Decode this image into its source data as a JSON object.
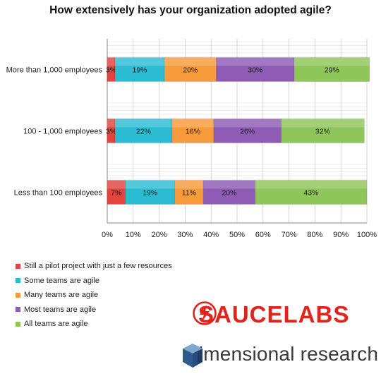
{
  "chart_data": {
    "type": "bar",
    "orientation": "horizontal",
    "stacked": true,
    "title": "How extensively has your organization adopted agile?",
    "categories": [
      "More than 1,000 employees",
      "100 - 1,000 employees",
      "Less than 100 employees"
    ],
    "series": [
      {
        "name": "Still a pilot project with just a few resources",
        "color": "#e0453e",
        "values": [
          3,
          3,
          7
        ],
        "labels": [
          "3%",
          "3%",
          "7%"
        ]
      },
      {
        "name": "Some teams are agile",
        "color": "#2bbcd4",
        "values": [
          19,
          22,
          19
        ],
        "labels": [
          "19%",
          "22%",
          "19%"
        ]
      },
      {
        "name": "Many teams are agile",
        "color": "#f79a3a",
        "values": [
          20,
          16,
          11
        ],
        "labels": [
          "20%",
          "16%",
          "11%"
        ]
      },
      {
        "name": "Most teams are agile",
        "color": "#8e5bb5",
        "values": [
          30,
          26,
          20
        ],
        "labels": [
          "30%",
          "26%",
          "20%"
        ]
      },
      {
        "name": "All teams are agile",
        "color": "#8fc65a",
        "values": [
          29,
          32,
          43
        ],
        "labels": [
          "29%",
          "32%",
          "43%"
        ]
      }
    ],
    "xlim": [
      0,
      100
    ],
    "xticks": [
      "0%",
      "10%",
      "20%",
      "30%",
      "40%",
      "50%",
      "60%",
      "70%",
      "80%",
      "90%",
      "100%"
    ],
    "grid": true,
    "legend_position": "bottom-left"
  },
  "logos": {
    "saucelabs": {
      "text": "SAUCELABS",
      "color": "#e2231a"
    },
    "dimensional": {
      "text": "dimensional research",
      "color": "#2f4f7f"
    }
  }
}
